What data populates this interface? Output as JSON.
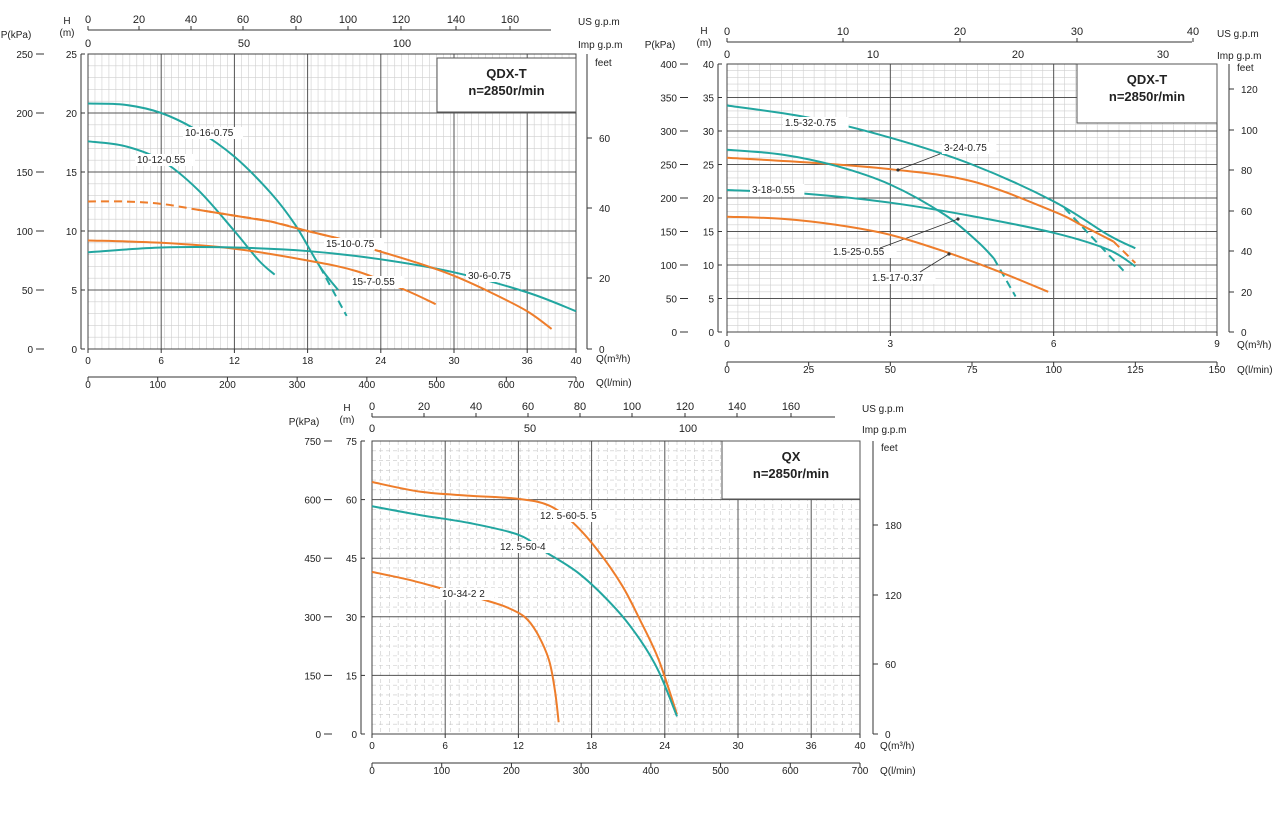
{
  "colors": {
    "teal": "#22a6a0",
    "orange": "#ee7d2b",
    "grid": "#cfcfcf",
    "major": "#555555"
  },
  "chart_data": [
    {
      "type": "line",
      "title": "QDX-T",
      "subtitle": "n=2850r/min",
      "xlabel": "Q(m³/h)",
      "xlabel2": "Q(l/min)",
      "ylabel_left_p": "P(kPa)",
      "ylabel_left_h": "H",
      "ylabel_left_h_unit": "(m)",
      "ylabel_right": "feet",
      "top_axis1_label": "US g.p.m",
      "top_axis2_label": "Imp g.p.m",
      "xlim": [
        0,
        40
      ],
      "ylim": [
        0,
        25
      ],
      "grid": true,
      "x_ticks": [
        "0",
        "6",
        "12",
        "18",
        "24",
        "30",
        "36",
        "40"
      ],
      "x2_ticks": [
        "0",
        "100",
        "200",
        "300",
        "400",
        "500",
        "600",
        "700"
      ],
      "h_ticks": [
        "0",
        "5",
        "10",
        "15",
        "20",
        "25"
      ],
      "p_ticks": [
        "0",
        "50",
        "100",
        "150",
        "200",
        "250"
      ],
      "feet_ticks": [
        "0",
        "20",
        "40",
        "60"
      ],
      "us_ticks": [
        "0",
        "20",
        "40",
        "60",
        "80",
        "100",
        "120",
        "140",
        "160"
      ],
      "imp_ticks": [
        "0",
        "50",
        "100"
      ],
      "series": [
        {
          "name": "10-16-0.75",
          "color": "teal",
          "x": [
            0,
            3,
            6,
            9,
            12,
            15,
            17,
            19,
            20.5
          ],
          "y": [
            20.8,
            20.7,
            20.0,
            18.5,
            16.3,
            13.2,
            10.5,
            7.0,
            5.0
          ],
          "dashed": [
            19,
            21.2
          ],
          "dashed_y": [
            7.0,
            2.8
          ]
        },
        {
          "name": "10-12-0.55",
          "color": "teal",
          "x": [
            0,
            3,
            6,
            9,
            12,
            14,
            15.3
          ],
          "y": [
            17.6,
            17.2,
            16.0,
            13.5,
            10.0,
            7.5,
            6.3
          ]
        },
        {
          "name": "15-10-0.75",
          "color": "orange",
          "x": [
            0,
            3,
            6,
            9,
            12,
            15,
            18,
            20,
            22,
            24
          ],
          "y": [
            12.5,
            12.5,
            12.3,
            11.8,
            11.3,
            10.8,
            10.0,
            9.5,
            9.0,
            8.4
          ],
          "dashed_until": 9
        },
        {
          "name": "15-7-0.55",
          "color": "orange",
          "x": [
            0,
            6,
            12,
            18,
            22,
            26,
            28.5
          ],
          "y": [
            9.2,
            9.0,
            8.5,
            7.5,
            6.6,
            5.0,
            3.8
          ]
        },
        {
          "name": "30-6-0.75",
          "color": "teal",
          "x": [
            0,
            6,
            12,
            18,
            24,
            30,
            36,
            40
          ],
          "y": [
            8.2,
            8.6,
            8.6,
            8.3,
            7.6,
            6.5,
            4.8,
            3.2
          ]
        },
        {
          "name": "",
          "color": "orange",
          "x": [
            23.5,
            27,
            30,
            33,
            36,
            38
          ],
          "y": [
            8.4,
            7.3,
            6.2,
            4.8,
            3.2,
            1.7
          ]
        }
      ]
    },
    {
      "type": "line",
      "title": "QDX-T",
      "subtitle": "n=2850r/min",
      "xlabel": "Q(m³/h)",
      "xlabel2": "Q(l/min)",
      "ylabel_left_p": "P(kPa)",
      "ylabel_left_h": "H",
      "ylabel_left_h_unit": "(m)",
      "ylabel_right": "feet",
      "top_axis1_label": "US g.p.m",
      "top_axis2_label": "Imp g.p.m",
      "xlim": [
        0,
        9
      ],
      "ylim": [
        0,
        40
      ],
      "grid": true,
      "x_ticks": [
        "0",
        "3",
        "6",
        "9"
      ],
      "x2_ticks": [
        "0",
        "25",
        "50",
        "75",
        "100",
        "125",
        "150"
      ],
      "h_ticks": [
        "0",
        "5",
        "10",
        "15",
        "20",
        "25",
        "30",
        "35",
        "40"
      ],
      "p_ticks": [
        "0",
        "50",
        "100",
        "150",
        "200",
        "250",
        "300",
        "350",
        "400"
      ],
      "feet_ticks": [
        "0",
        "20",
        "40",
        "60",
        "80",
        "100",
        "120"
      ],
      "us_ticks": [
        "0",
        "10",
        "20",
        "30",
        "40"
      ],
      "imp_ticks": [
        "0",
        "10",
        "20",
        "30"
      ],
      "series": [
        {
          "name": "1.5-32-0.75",
          "color": "teal",
          "x": [
            0,
            1.5,
            3,
            4.5,
            6,
            7,
            7.5
          ],
          "y": [
            33.8,
            32.0,
            29.0,
            25.0,
            19.5,
            14.5,
            12.5
          ],
          "dashed": [
            6.2,
            7.3
          ],
          "dashed_y": [
            18.5,
            9.0
          ]
        },
        {
          "name": "3-24-0.75",
          "color": "orange",
          "x": [
            0,
            1.5,
            3,
            4.5,
            6,
            6.5,
            7.1
          ],
          "y": [
            26.0,
            25.3,
            24.3,
            22.5,
            18.0,
            16.0,
            13.5
          ],
          "dashed": [
            7.1,
            7.5
          ],
          "dashed_y": [
            13.5,
            10.3
          ]
        },
        {
          "name": "1.5-25-0.55",
          "color": "teal",
          "x": [
            0,
            1,
            2,
            3,
            4,
            4.6,
            4.9
          ],
          "y": [
            27.2,
            26.5,
            24.8,
            22.0,
            17.5,
            13.5,
            11.0
          ],
          "dashed": [
            4.9,
            5.3
          ],
          "dashed_y": [
            11.0,
            5.3
          ]
        },
        {
          "name": "3-18-0.55",
          "color": "teal",
          "x": [
            0,
            1.5,
            3,
            4.5,
            6,
            7,
            7.5
          ],
          "y": [
            21.2,
            20.6,
            19.3,
            17.3,
            14.8,
            12.3,
            9.8
          ]
        },
        {
          "name": "1.5-17-0.37",
          "color": "orange",
          "x": [
            0,
            1,
            2,
            3,
            4,
            5,
            5.9
          ],
          "y": [
            17.2,
            16.9,
            16.0,
            14.5,
            12.0,
            9.0,
            6.0
          ]
        }
      ]
    },
    {
      "type": "line",
      "title": "QX",
      "subtitle": "n=2850r/min",
      "xlabel": "Q(m³/h)",
      "xlabel2": "Q(l/min)",
      "ylabel_left_p": "P(kPa)",
      "ylabel_left_h": "H",
      "ylabel_left_h_unit": "(m)",
      "ylabel_right": "feet",
      "top_axis1_label": "US g.p.m",
      "top_axis2_label": "Imp g.p.m",
      "xlim": [
        0,
        40
      ],
      "ylim": [
        0,
        75
      ],
      "grid": true,
      "x_ticks": [
        "0",
        "6",
        "12",
        "18",
        "24",
        "30",
        "36",
        "40"
      ],
      "x2_ticks": [
        "0",
        "100",
        "200",
        "300",
        "400",
        "500",
        "600",
        "700"
      ],
      "h_ticks": [
        "0",
        "15",
        "30",
        "45",
        "60",
        "75"
      ],
      "p_ticks": [
        "0",
        "150",
        "300",
        "450",
        "600",
        "750"
      ],
      "feet_ticks": [
        "0",
        "60",
        "120",
        "180"
      ],
      "us_ticks": [
        "0",
        "20",
        "40",
        "60",
        "80",
        "100",
        "120",
        "140",
        "160"
      ],
      "imp_ticks": [
        "0",
        "50",
        "100"
      ],
      "series": [
        {
          "name": "12. 5-60-5. 5",
          "color": "orange",
          "x": [
            0,
            4,
            8,
            12,
            14.5,
            16.5,
            18.5,
            20.5,
            22,
            23.5,
            25
          ],
          "y": [
            64.5,
            62.0,
            61.0,
            60.2,
            58.5,
            54.0,
            47.0,
            38.0,
            29.0,
            19.0,
            5.0
          ]
        },
        {
          "name": "12. 5-50-4",
          "color": "teal",
          "x": [
            0,
            4,
            8,
            12,
            14,
            17,
            20,
            22,
            23.5,
            25
          ],
          "y": [
            58.3,
            56.0,
            54.0,
            51.0,
            47.0,
            41.0,
            32.0,
            24.0,
            16.0,
            4.5
          ]
        },
        {
          "name": "10-34-2 2",
          "color": "orange",
          "x": [
            0,
            3,
            6,
            9,
            11,
            12.5,
            13.5,
            14.5,
            15,
            15.3
          ],
          "y": [
            41.5,
            39.5,
            37.0,
            34.5,
            32.5,
            30.0,
            26.0,
            19.0,
            11.0,
            3.0
          ]
        }
      ]
    }
  ]
}
